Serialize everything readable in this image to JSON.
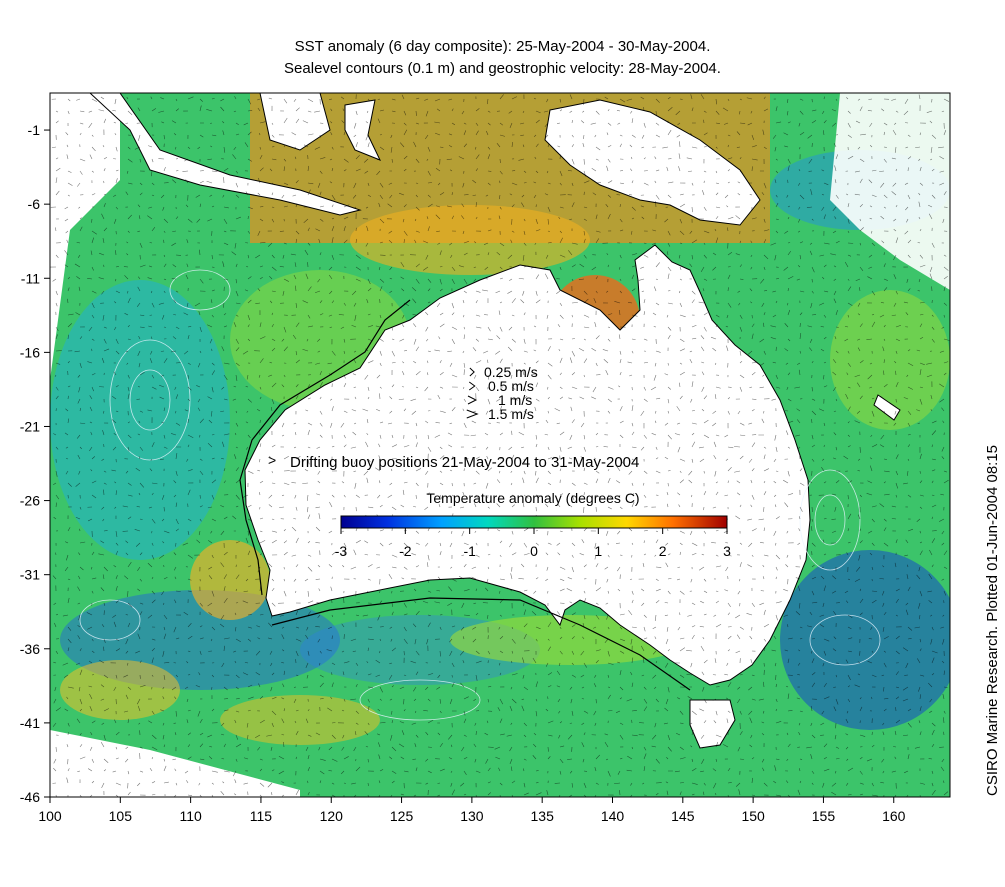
{
  "title_line1": "SST anomaly (6 day composite): 25-May-2004 - 30-May-2004.",
  "title_line2": "Sealevel contours (0.1 m) and geostrophic velocity: 28-May-2004.",
  "credit": "CSIRO Marine Research. Plotted 01-Jun-2004 08:15",
  "axes": {
    "x_ticks": [
      "100",
      "105",
      "110",
      "115",
      "120",
      "125",
      "130",
      "135",
      "140",
      "145",
      "150",
      "155",
      "160"
    ],
    "y_ticks": [
      "-1",
      "-6",
      "-11",
      "-16",
      "-21",
      "-26",
      "-31",
      "-36",
      "-41",
      "-46"
    ],
    "lon_range": [
      100,
      164
    ],
    "lat_range": [
      -46,
      1.5
    ]
  },
  "velocity_legend": [
    {
      "label": "0.25 m/s",
      "speed": 0.25
    },
    {
      "label": "0.5 m/s",
      "speed": 0.5
    },
    {
      "label": "1 m/s",
      "speed": 1
    },
    {
      "label": "1.5 m/s",
      "speed": 1.5
    }
  ],
  "buoy_legend": {
    "symbol": ">",
    "label": "Drifting buoy positions 21-May-2004 to 31-May-2004",
    "color": "#ff00ff"
  },
  "colorbar": {
    "title": "Temperature anomaly (degrees C)",
    "ticks": [
      "-3",
      "-2",
      "-1",
      "0",
      "1",
      "2",
      "3"
    ],
    "range": [
      -3,
      3
    ],
    "colors": [
      "#000090",
      "#0040ff",
      "#00c8ff",
      "#20d080",
      "#40c020",
      "#a0e000",
      "#ffd000",
      "#ff8000",
      "#c02000",
      "#800000"
    ]
  },
  "colors": {
    "land": "#ffffff",
    "coast": "#000000",
    "contour": "#e8f4ff",
    "buoy": "#ff00ff"
  }
}
